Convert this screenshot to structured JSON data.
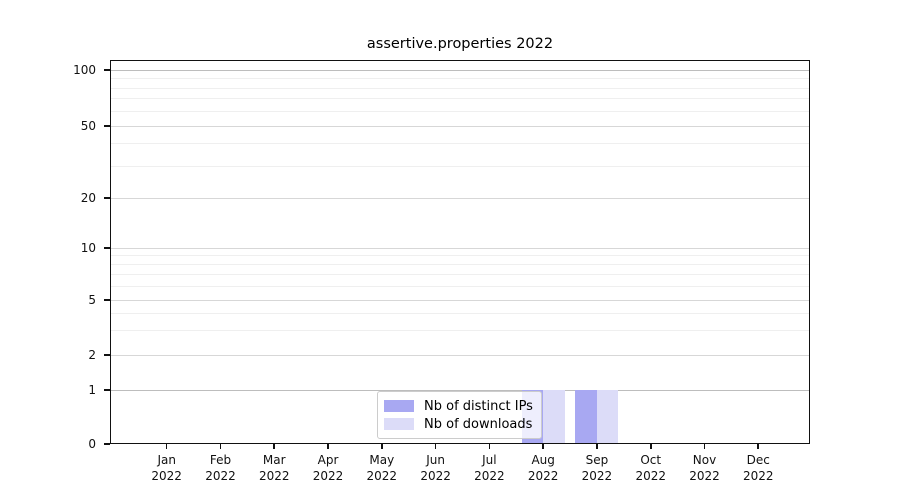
{
  "chart_data": {
    "type": "bar",
    "title": "assertive.properties 2022",
    "categories": [
      "Jan 2022",
      "Feb 2022",
      "Mar 2022",
      "Apr 2022",
      "May 2022",
      "Jun 2022",
      "Jul 2022",
      "Aug 2022",
      "Sep 2022",
      "Oct 2022",
      "Nov 2022",
      "Dec 2022"
    ],
    "series": [
      {
        "name": "Nb of distinct IPs",
        "color": "#a8a8f2",
        "values": [
          0,
          0,
          0,
          0,
          0,
          0,
          0,
          1,
          1,
          0,
          0,
          0
        ]
      },
      {
        "name": "Nb of downloads",
        "color": "#dcdcf8",
        "values": [
          0,
          0,
          0,
          0,
          0,
          0,
          0,
          1,
          1,
          0,
          0,
          0
        ]
      }
    ],
    "xlabel": "",
    "ylabel": "",
    "yscale": "symlog",
    "ylim": [
      0,
      115
    ],
    "yticks": [
      0,
      1,
      2,
      5,
      10,
      20,
      50,
      100
    ],
    "yminorticks": [
      3,
      4,
      6,
      7,
      8,
      9,
      30,
      40,
      60,
      70,
      80,
      90
    ],
    "grid": true,
    "legend_position": "lower center"
  }
}
